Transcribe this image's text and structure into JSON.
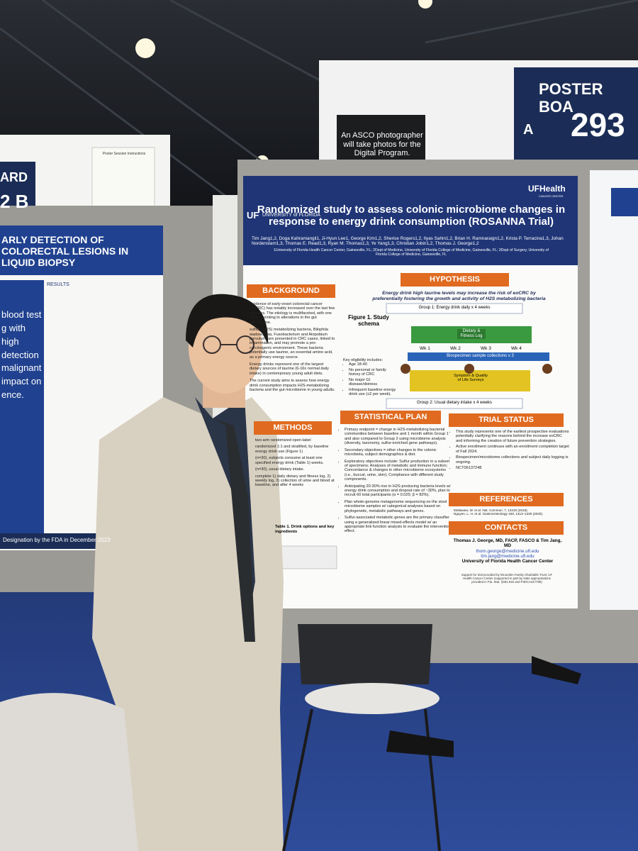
{
  "signs": {
    "board_right_label": "POSTER BOA",
    "board_right_letter": "A",
    "board_right_number": "293",
    "board_left_label": "ARD",
    "board_left_number": "2 B",
    "photographer_notice": "An ASCO photographer will take photos for the Digital Program.",
    "session_instructions": "Poster Session Instructions"
  },
  "poster": {
    "uf": "UF",
    "university": "UNIVERSITY of FLORIDA",
    "health": "UFHealth",
    "health_sub": "CANCER CENTER",
    "title": "Randomized study to assess colonic microbiome changes in response to energy drink consumption (ROSANNA Trial)",
    "authors": "Tim Jang1,2, Doga Kahramangil1, Ji-Hyun Lee1, George Kim1,2, Sherise Rogers1,2, Ilyas Sahin1,2, Brian H. Ramnaraign1,2, Krista P. Terracina1,3, Johan Nordenstam1,3, Thomas E. Read1,3, Ryan M. Thomas1,3, Ye Yang1,3, Christian Jobin1,2, Thomas J. George1,2",
    "affiliations": "1University of Florida Health Cancer Center, Gainesville, FL; 2Dept of Medicine, University of Florida College of Medicine, Gainesville, FL; 3Dept of Surgery, University of Florida College of Medicine, Gainesville, FL",
    "background": {
      "heading": "BACKGROUND",
      "paragraphs": [
        "incidence of early-onset colorectal cancer (eoCRC) has notably increased over the last few decades. The etiology is multifaceted, with one theory pointing to alterations in the gut microbiome.",
        "sulfide (H2S) metabolizing bacteria, Bilophila wadsworthia, Fusobacterium and Atopobium parvulum, are presented in CRC cases, linked to inflammation, and may promote a pro-carcinogenic environment. These bacteria potentially use taurine, an essential amino acid, as a primary energy source.",
        "Energy drinks represent one of the largest dietary sources of taurine (6-16x normal daily intake) in contemporary young adult diets.",
        "The current study aims to assess how energy drink consumption impacts H2S-metabolizing bacteria and the gut microbiome in young adults."
      ]
    },
    "hypothesis": {
      "heading": "HYPOTHESIS",
      "text": "Energy drink high taurine levels may increase the risk of eoCRC by preferentially fostering the growth and activity of H2S metabolizing bacteria"
    },
    "figure": {
      "caption": "Figure 1. Study schema",
      "group1": "Group 1: Energy drink daily x 4 weeks",
      "group2": "Group 2: Usual dietary intake x 4 weeks",
      "log": "Dietary & Fitness Log",
      "samples": "Biospecimen sample collections x 3",
      "surveys": "Symptom & Quality of Life Surveys",
      "weeks": [
        "Wk 1",
        "Wk 2",
        "Wk 3",
        "Wk 4"
      ],
      "eligibility_heading": "Key eligibility includes:",
      "eligibility": [
        "Age 18-40",
        "No personal or family history of CRC",
        "No major GI disease/distress",
        "Infrequent baseline energy drink use (≤2 per week)."
      ]
    },
    "methods": {
      "heading": "METHODS",
      "paragraphs": [
        "two-arm randomized open-label",
        "randomized 1:1 and stratified, by baseline energy drink use (Figure 1)",
        "(n=30), subjects consume at least one specified energy drink (Table 1) weeks.",
        "(n=30), usual dietary intake.",
        "complete 1) daily dietary and fitness log, 2) weekly log, 3) collection of urine and blood at baseline, and after 4 weeks"
      ],
      "table_caption": "Table 1. Drink options and key ingredients"
    },
    "statistical_plan": {
      "heading": "STATISTICAL PLAN",
      "items": [
        "Primary endpoint = change in H2S-metabolizing bacterial communities between baseline and 1 month within Group 1 and also compared to Group 2 using microbiome analysis (diversity, taxonomy, sulfur-enriched gene pathways).",
        "Secondary objectives = other changes to the colonic microbiota, subject demographics & diet.",
        "Exploratory objectives include: Sulfur production in a subset of specimens; Analyses of metabolic and immune function; Concordance & changes in other microbiome ecosystems (i.e., buccal, urine, skin); Compliance with different study components.",
        "Anticipating 20-30% rise in H2S-producing bacteria levels w/ energy drink consumption and dropout rate of ~30%, plan to recruit 60 total participants (α = 0.025; β = 82%).",
        "Plan whole-genome metagenome sequencing on the stool microbiome samples w/ categorical analyses based on phylogenetic, metabolic pathways and genes.",
        "Sulfur-associated metabolic genes are the primary classifier using a generalized linear mixed-effects model w/ an appropriate link function analysis to evaluate the intervention effect."
      ]
    },
    "trial_status": {
      "heading": "TRIAL STATUS",
      "items": [
        "This study represents one of the earliest prospective evaluations potentially clarifying the reasons behind the increase eoCRC and informing the creation of future prevention strategies.",
        "Active enrollment continues with an enrollment completion target of Fall 2024.",
        "Biospecimen/microbiome collections and subject daily logging is ongoing.",
        "NCT06137248"
      ]
    },
    "references": {
      "heading": "REFERENCES",
      "items": [
        "Mottawea, W. et al. Nat. Commun. 7, 13419 (2016).",
        "Nguyen, L. H. et al. Gastroenterology 158, 1313–1325 (2020)."
      ]
    },
    "contacts": {
      "heading": "CONTACTS",
      "names": "Thomas J. George, MD, FACP, FASCO & Tim Jang, MD",
      "emails": [
        "thom.george@medicine.ufl.edu",
        "tim.jang@medicine.ufl.edu"
      ],
      "institution": "University of Florida Health Cancer Center"
    },
    "support": "Support for trial provided by McJunkin Family Charitable Trust; UF Health Cancer Center (supported in part by state appropriations provided in Fla. Stat. §381.915 and P30CA247796)"
  },
  "left_poster": {
    "title": "ARLY DETECTION OF COLORECTAL LESIONS IN LIQUID BIOPSY",
    "results": "RESULTS",
    "big_text": "blood test g with high detection malignant impact on ence.",
    "footer": "Designation by the FDA in December 2023"
  }
}
